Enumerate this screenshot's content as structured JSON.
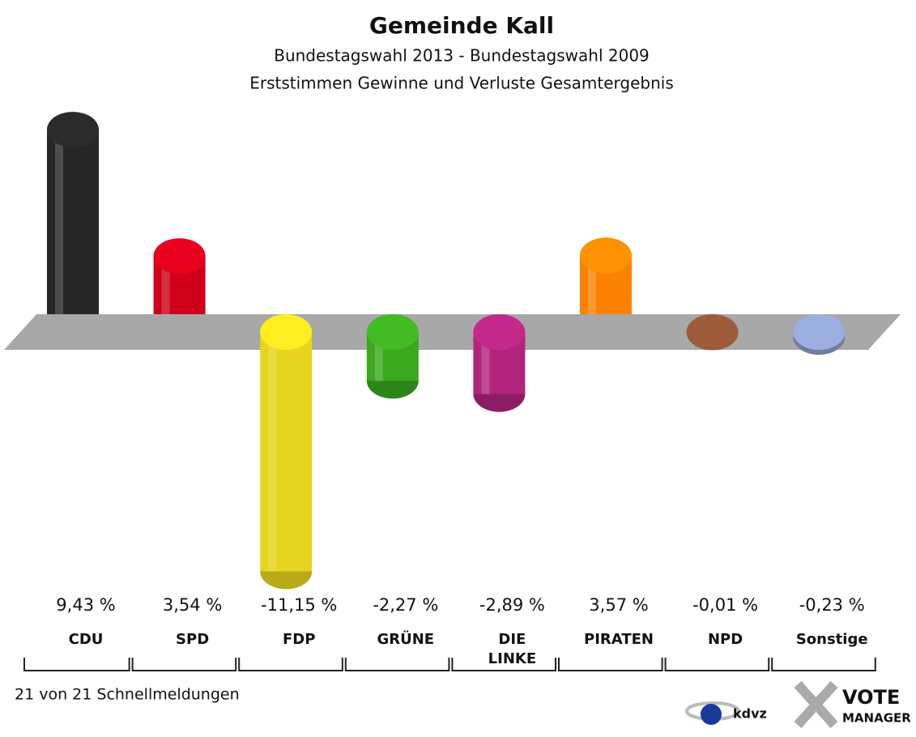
{
  "chart_data": {
    "type": "bar",
    "title": "Gemeinde Kall",
    "subtitle": [
      "Bundestagswahl 2013 - Bundestagswahl 2009",
      "Erststimmen Gewinne und Verluste Gesamtergebnis"
    ],
    "categories": [
      "CDU",
      "SPD",
      "FDP",
      "GRÜNE",
      "DIE LINKE",
      "PIRATEN",
      "NPD",
      "Sonstige"
    ],
    "values": [
      9.43,
      3.54,
      -11.15,
      -2.27,
      -2.89,
      3.57,
      -0.01,
      -0.23
    ],
    "value_labels": [
      "9,43 %",
      "3,54 %",
      "-11,15 %",
      "-2,27 %",
      "-2,89 %",
      "3,57 %",
      "-0,01 %",
      "-0,23 %"
    ],
    "colors": [
      "#262626",
      "#d0001c",
      "#e6d41e",
      "#3ba81e",
      "#b0247c",
      "#fa8200",
      "#8e5234",
      "#8c9cc8"
    ],
    "footer": "21 von 21 Schnellmeldungen",
    "logos": [
      "kdvz",
      "VOTE",
      "MANAGER"
    ]
  }
}
